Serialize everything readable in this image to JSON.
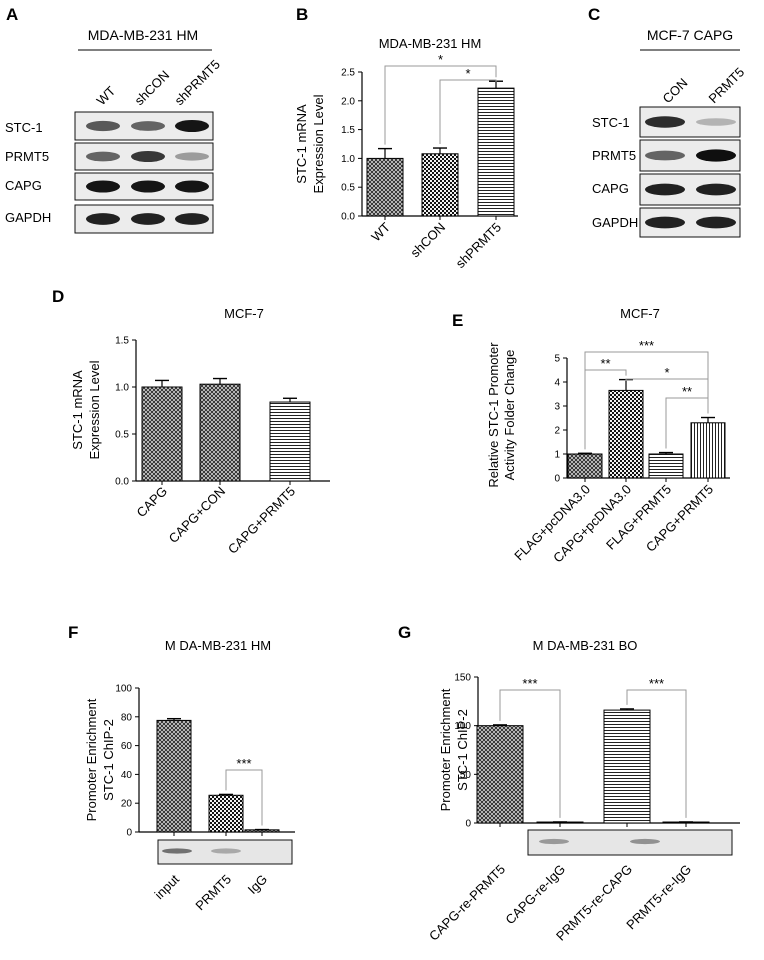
{
  "panel_letters": {
    "A": "A",
    "B": "B",
    "C": "C",
    "D": "D",
    "E": "E",
    "F": "F",
    "G": "G"
  },
  "blot_A": {
    "title": "MDA-MB-231 HM",
    "lanes": [
      "WT",
      "shCON",
      "shPRMT5"
    ],
    "rows": [
      "STC-1",
      "PRMT5",
      "CAPG",
      "GAPDH"
    ],
    "intensity": [
      [
        0.65,
        0.6,
        0.95
      ],
      [
        0.6,
        0.8,
        0.35
      ],
      [
        0.95,
        0.95,
        0.95
      ],
      [
        0.9,
        0.9,
        0.9
      ]
    ]
  },
  "blot_C": {
    "title": "MCF-7 CAPG",
    "lanes": [
      "CON",
      "PRMT5"
    ],
    "rows": [
      "STC-1",
      "PRMT5",
      "CAPG",
      "GAPDH"
    ],
    "intensity": [
      [
        0.85,
        0.25
      ],
      [
        0.6,
        0.98
      ],
      [
        0.9,
        0.9
      ],
      [
        0.9,
        0.9
      ]
    ]
  },
  "gel_F": {
    "intensity": [
      0.7,
      0.35,
      0.0
    ]
  },
  "gel_G": {
    "intensity": [
      0.45,
      0.0,
      0.5,
      0.0
    ]
  },
  "chart_data": [
    {
      "panel": "B",
      "type": "bar",
      "title": "MDA-MB-231 HM",
      "categories": [
        "WT",
        "shCON",
        "shPRMT5"
      ],
      "values": [
        1.0,
        1.08,
        2.22
      ],
      "errors": [
        0.17,
        0.1,
        0.12
      ],
      "patterns": [
        "crosshatch",
        "checker",
        "hlines"
      ],
      "ylabel": [
        "STC-1 mRNA",
        "Expression Level"
      ],
      "ylim": [
        0,
        2.5
      ],
      "yticks": [
        "0.0",
        "0.5",
        "1.0",
        "1.5",
        "2.0",
        "2.5"
      ],
      "sig": [
        {
          "from": 0,
          "to": 2,
          "label": "*"
        },
        {
          "from": 1,
          "to": 2,
          "label": "*"
        }
      ]
    },
    {
      "panel": "D",
      "type": "bar",
      "title": "MCF-7",
      "categories": [
        "CAPG",
        "CAPG+CON",
        "CAPG+PRMT5"
      ],
      "values": [
        1.0,
        1.03,
        0.84
      ],
      "errors": [
        0.07,
        0.06,
        0.04
      ],
      "patterns": [
        "crosshatch",
        "crosshatch",
        "hlines"
      ],
      "ylabel": [
        "STC-1 mRNA",
        "Expression Level"
      ],
      "ylim": [
        0,
        1.5
      ],
      "yticks": [
        "0.0",
        "0.5",
        "1.0",
        "1.5"
      ],
      "sig": []
    },
    {
      "panel": "E",
      "type": "bar",
      "title": "MCF-7",
      "categories": [
        "FLAG+pcDNA3.0",
        "CAPG+pcDNA3.0",
        "FLAG+PRMT5",
        "CAPG+PRMT5"
      ],
      "values": [
        1.0,
        3.65,
        1.0,
        2.3
      ],
      "errors": [
        0.03,
        0.45,
        0.06,
        0.22
      ],
      "patterns": [
        "crosshatch",
        "checker",
        "hlines",
        "vlines"
      ],
      "ylabel": [
        "Relative STC-1 Promoter",
        "Activity Folder Change"
      ],
      "ylim": [
        0,
        5
      ],
      "yticks": [
        "0",
        "1",
        "2",
        "3",
        "4",
        "5"
      ],
      "sig": [
        {
          "from": 0,
          "to": 1,
          "label": "**"
        },
        {
          "from": 1,
          "to": 3,
          "label": "*"
        },
        {
          "from": 2,
          "to": 3,
          "label": "**"
        },
        {
          "from": 0,
          "to": 3,
          "label": "***"
        }
      ]
    },
    {
      "panel": "F",
      "type": "bar",
      "title": "M DA-MB-231 HM",
      "categories": [
        "input",
        "PRMT5",
        "IgG"
      ],
      "values": [
        77.5,
        25.5,
        1.5
      ],
      "errors": [
        1.2,
        0.6,
        0.2
      ],
      "patterns": [
        "crosshatch",
        "checker",
        "crosshatch"
      ],
      "ylabel": [
        "Promoter Enrichment",
        "STC-1 ChIP-2"
      ],
      "ylim": [
        0,
        100
      ],
      "yticks": [
        "0",
        "20",
        "40",
        "60",
        "80",
        "100"
      ],
      "sig": [
        {
          "from": 1,
          "to": 2,
          "label": "***"
        }
      ]
    },
    {
      "panel": "G",
      "type": "bar",
      "title": "M DA-MB-231 BO",
      "categories": [
        "CAPG-re-PRMT5",
        "CAPG-re-IgG",
        "PRMT5-re-CAPG",
        "PRMT5-re-IgG"
      ],
      "values": [
        100,
        1,
        116,
        1
      ],
      "errors": [
        0.8,
        0.1,
        1.2,
        0.1
      ],
      "patterns": [
        "crosshatch",
        "crosshatch",
        "hlines",
        "hlines"
      ],
      "ylabel": [
        "Promoter Enrichment",
        "STC-1 ChIP-2"
      ],
      "ylim": [
        0,
        150
      ],
      "yticks": [
        "0",
        "50",
        "100",
        "150"
      ],
      "sig": [
        {
          "from": 0,
          "to": 1,
          "label": "***"
        },
        {
          "from": 2,
          "to": 3,
          "label": "***"
        }
      ]
    }
  ]
}
